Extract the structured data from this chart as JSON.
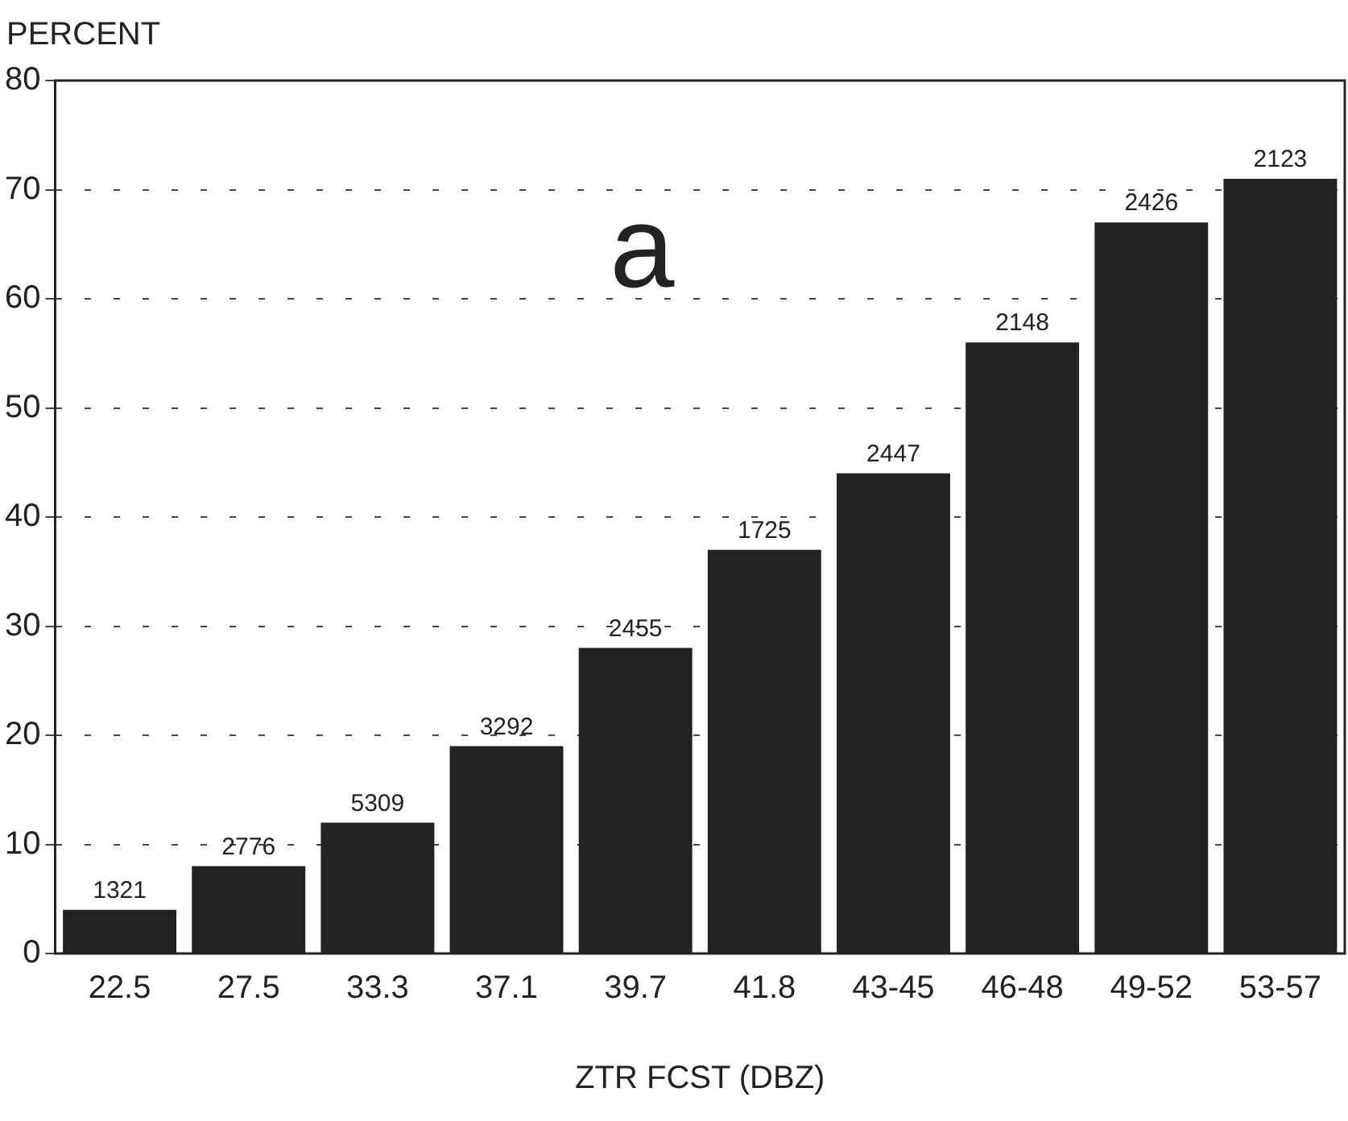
{
  "chart_data": {
    "type": "bar",
    "xlabel": "ZTR FCST (DBZ)",
    "ylabel": "PERCENT",
    "categories": [
      "22.5",
      "27.5",
      "33.3",
      "37.1",
      "39.7",
      "41.8",
      "43-45",
      "46-48",
      "49-52",
      "53-57"
    ],
    "values": [
      4,
      8,
      12,
      19,
      28,
      37,
      44,
      56,
      67,
      71
    ],
    "color": "#222222",
    "ylim": [
      0,
      80
    ],
    "yticks": [
      0,
      10,
      20,
      30,
      40,
      50,
      60,
      70,
      80
    ],
    "grid": "y",
    "legend": false,
    "annotations": [
      "a",
      {
        "text": "1321",
        "x": "22.5",
        "y": 4
      },
      {
        "text": "2776",
        "x": "27.5",
        "y": 8
      },
      {
        "text": "5309",
        "x": "33.3",
        "y": 12
      },
      {
        "text": "3292",
        "x": "37.1",
        "y": 19
      },
      {
        "text": "2455",
        "x": "39.7",
        "y": 28
      },
      {
        "text": "1725",
        "x": "41.8",
        "y": 37
      },
      {
        "text": "2447",
        "x": "43-45",
        "y": 44
      },
      {
        "text": "2148",
        "x": "46-48",
        "y": 56
      },
      {
        "text": "2426",
        "x": "49-52",
        "y": 67
      },
      {
        "text": "2123",
        "x": "53-57",
        "y": 71
      }
    ]
  }
}
